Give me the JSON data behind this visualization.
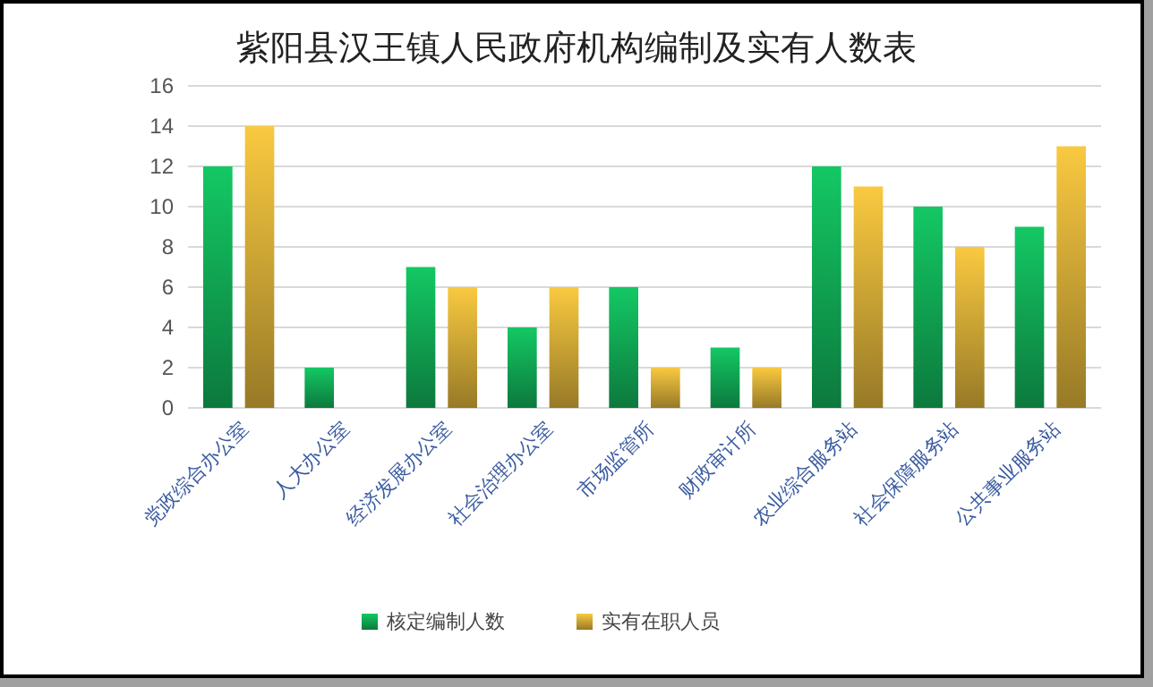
{
  "chart_data": {
    "type": "bar",
    "title": "紫阳县汉王镇人民政府机构编制及实有人数表",
    "categories": [
      "党政综合办公室",
      "人大办公室",
      "经济发展办公室",
      "社会治理办公室",
      "市场监管所",
      "财政审计所",
      "农业综合服务站",
      "社会保障服务站",
      "公共事业服务站"
    ],
    "series": [
      {
        "name": "核定编制人数",
        "color": "#14c864",
        "values": [
          12,
          2,
          7,
          4,
          6,
          3,
          12,
          10,
          9
        ]
      },
      {
        "name": "实有在职人员",
        "color": "#f9c940",
        "values": [
          14,
          0,
          6,
          6,
          2,
          2,
          11,
          8,
          13
        ]
      }
    ],
    "ylim": [
      0,
      16
    ],
    "yticks": [
      0,
      2,
      4,
      6,
      8,
      10,
      12,
      14,
      16
    ],
    "grid": "y",
    "legend": "bottom"
  }
}
